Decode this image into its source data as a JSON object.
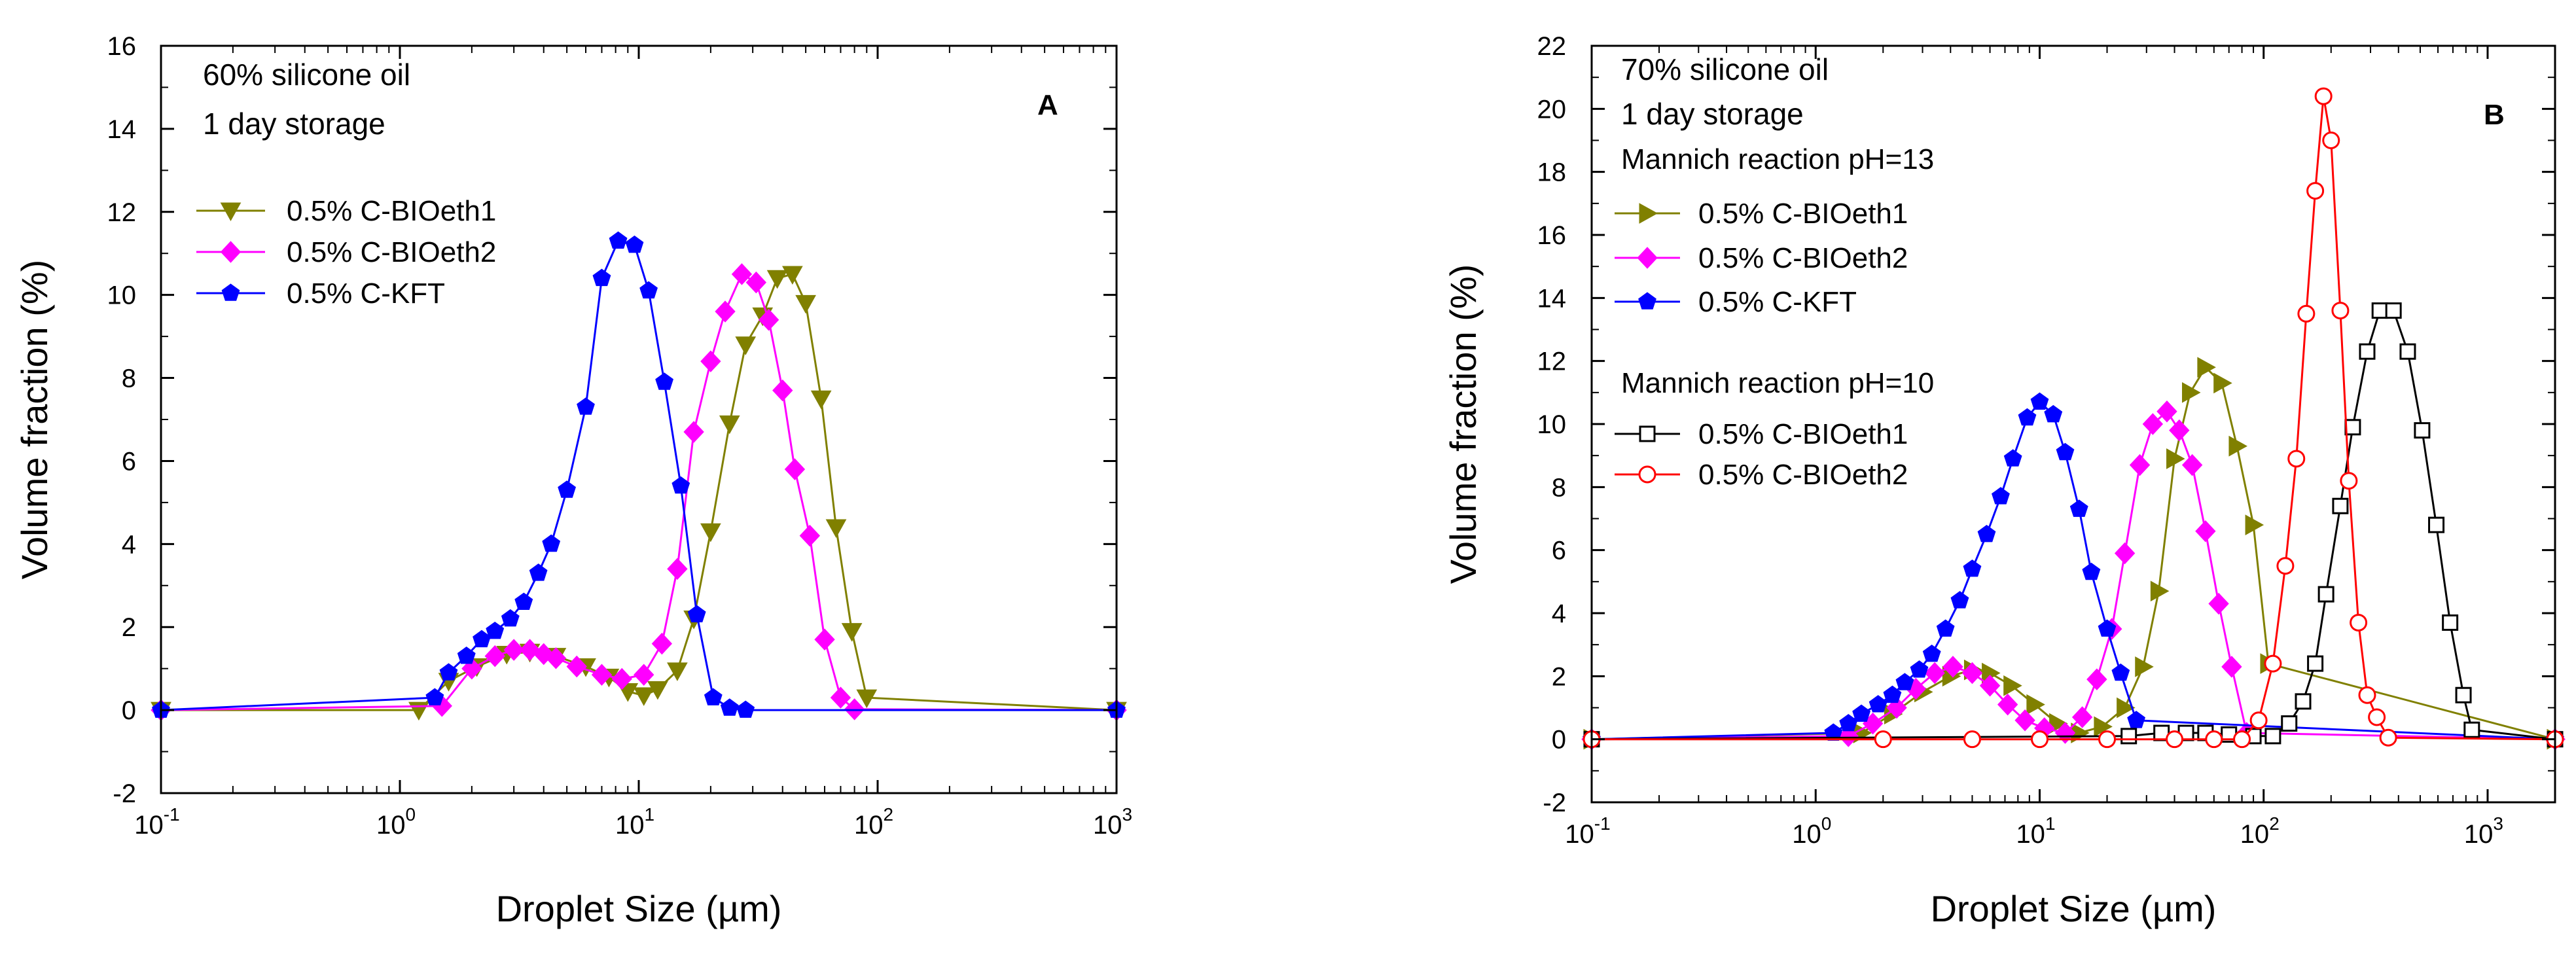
{
  "chart_data": [
    {
      "type": "line",
      "panel": "A",
      "xlabel": "Droplet Size (µm)",
      "ylabel": "Volume fraction (%)",
      "xscale": "log",
      "xlim": [
        0.1,
        1000
      ],
      "ylim": [
        -2,
        16
      ],
      "xticks": [
        0.1,
        1,
        10,
        100,
        1000
      ],
      "xtick_labels": [
        {
          "base": "10",
          "exp": "-1"
        },
        {
          "base": "10",
          "exp": "0"
        },
        {
          "base": "10",
          "exp": "1"
        },
        {
          "base": "10",
          "exp": "2"
        },
        {
          "base": "10",
          "exp": "3"
        }
      ],
      "yticks": [
        -2,
        0,
        2,
        4,
        6,
        8,
        10,
        12,
        14,
        16
      ],
      "annotations": [
        "60% silicone oil",
        "1 day storage"
      ],
      "legend": {
        "header": "",
        "entries": [
          "0.5% C-BIOeth1",
          "0.5% C-BIOeth2",
          "0.5% C-KFT"
        ]
      },
      "series": [
        {
          "name": "0.5% C-BIOeth1",
          "color": "#808000",
          "marker": "triangle-down",
          "filled": true,
          "x": [
            0.1,
            1.2,
            1.6,
            2.1,
            2.8,
            3.5,
            4.5,
            6,
            7.5,
            9,
            10.5,
            12,
            14.5,
            17,
            20,
            24,
            28,
            33,
            38,
            44,
            50,
            58,
            67,
            78,
            90,
            1000
          ],
          "y": [
            0,
            0,
            0.7,
            1.05,
            1.35,
            1.4,
            1.3,
            1.05,
            0.8,
            0.45,
            0.35,
            0.5,
            0.95,
            2.2,
            4.3,
            6.9,
            8.8,
            9.5,
            10.4,
            10.5,
            9.8,
            7.5,
            4.4,
            1.9,
            0.3,
            0
          ]
        },
        {
          "name": "0.5% C-BIOeth2",
          "color": "#ff00ff",
          "marker": "diamond",
          "filled": true,
          "x": [
            0.1,
            1.5,
            2.0,
            2.5,
            3.0,
            3.5,
            4.0,
            4.5,
            5.5,
            7.0,
            8.5,
            10.5,
            12.5,
            14.5,
            17,
            20,
            23,
            27,
            31,
            35,
            40,
            45,
            52,
            60,
            70,
            80,
            1000
          ],
          "y": [
            0,
            0.1,
            1.0,
            1.3,
            1.45,
            1.45,
            1.35,
            1.25,
            1.05,
            0.85,
            0.75,
            0.85,
            1.6,
            3.4,
            6.7,
            8.4,
            9.6,
            10.5,
            10.3,
            9.4,
            7.7,
            5.8,
            4.2,
            1.7,
            0.3,
            0.02,
            0
          ]
        },
        {
          "name": "0.5% C-KFT",
          "color": "#0000ff",
          "marker": "pentagon",
          "filled": true,
          "x": [
            0.1,
            1.4,
            1.6,
            1.9,
            2.2,
            2.5,
            2.9,
            3.3,
            3.8,
            4.3,
            5.0,
            6.0,
            7.0,
            8.2,
            9.6,
            11.0,
            12.8,
            15.0,
            17.5,
            20.5,
            24,
            28,
            1000
          ],
          "y": [
            0,
            0.3,
            0.9,
            1.3,
            1.7,
            1.9,
            2.2,
            2.6,
            3.3,
            4.0,
            5.3,
            7.3,
            10.4,
            11.3,
            11.2,
            10.1,
            7.9,
            5.4,
            2.3,
            0.3,
            0.05,
            0,
            0
          ]
        }
      ]
    },
    {
      "type": "line",
      "panel": "B",
      "xlabel": "Droplet Size (µm)",
      "ylabel": "Volume fraction (%)",
      "xscale": "log",
      "xlim": [
        0.1,
        2000
      ],
      "ylim": [
        -2,
        22
      ],
      "xticks": [
        0.1,
        1,
        10,
        100,
        1000
      ],
      "xtick_labels": [
        {
          "base": "10",
          "exp": "-1"
        },
        {
          "base": "10",
          "exp": "0"
        },
        {
          "base": "10",
          "exp": "1"
        },
        {
          "base": "10",
          "exp": "2"
        },
        {
          "base": "10",
          "exp": "3"
        }
      ],
      "yticks": [
        -2,
        0,
        2,
        4,
        6,
        8,
        10,
        12,
        14,
        16,
        18,
        20,
        22
      ],
      "annotations": [
        "70% silicone oil",
        "1 day storage"
      ],
      "legend_groups": [
        {
          "header": "Mannich reaction pH=13",
          "entries": [
            "0.5% C-BIOeth1",
            "0.5% C-BIOeth2",
            "0.5% C-KFT"
          ]
        },
        {
          "header": "Mannich reaction pH=10",
          "entries": [
            "0.5% C-BIOeth1",
            "0.5% C-BIOeth2"
          ]
        }
      ],
      "series": [
        {
          "name": "0.5% C-BIOeth1",
          "group": "Mannich reaction pH=13",
          "color": "#808000",
          "marker": "triangle-right",
          "filled": true,
          "x": [
            0.1,
            1.6,
            2.2,
            3.0,
            4.0,
            5.0,
            6.0,
            7.5,
            9.5,
            12,
            15,
            19,
            24,
            29,
            34,
            40,
            47,
            55,
            65,
            76,
            90,
            105,
            2000
          ],
          "y": [
            0,
            0.2,
            0.8,
            1.5,
            2.0,
            2.2,
            2.1,
            1.7,
            1.1,
            0.5,
            0.2,
            0.4,
            1.0,
            2.3,
            4.7,
            8.9,
            11.0,
            11.8,
            11.3,
            9.3,
            6.8,
            2.4,
            0
          ]
        },
        {
          "name": "0.5% C-BIOeth2",
          "group": "Mannich reaction pH=13",
          "color": "#ff00ff",
          "marker": "diamond",
          "filled": true,
          "x": [
            0.1,
            1.4,
            1.8,
            2.3,
            2.8,
            3.4,
            4.1,
            5.0,
            6.0,
            7.2,
            8.6,
            10.5,
            13,
            15.5,
            18,
            21,
            24,
            28,
            32,
            37,
            42,
            48,
            55,
            63,
            72,
            84,
            2000
          ],
          "y": [
            0,
            0.1,
            0.5,
            1.0,
            1.6,
            2.1,
            2.3,
            2.1,
            1.7,
            1.1,
            0.6,
            0.35,
            0.2,
            0.7,
            1.9,
            3.5,
            5.9,
            8.7,
            10.0,
            10.4,
            9.8,
            8.7,
            6.6,
            4.3,
            2.3,
            0.2,
            0
          ]
        },
        {
          "name": "0.5% C-KFT",
          "group": "Mannich reaction pH=13",
          "color": "#0000ff",
          "marker": "pentagon",
          "filled": true,
          "x": [
            0.1,
            1.2,
            1.4,
            1.6,
            1.9,
            2.2,
            2.5,
            2.9,
            3.3,
            3.8,
            4.4,
            5.0,
            5.8,
            6.7,
            7.6,
            8.8,
            10.0,
            11.5,
            13,
            15,
            17,
            20,
            23,
            27,
            2000
          ],
          "y": [
            0,
            0.2,
            0.5,
            0.8,
            1.1,
            1.4,
            1.8,
            2.2,
            2.7,
            3.5,
            4.4,
            5.4,
            6.5,
            7.7,
            8.9,
            10.2,
            10.7,
            10.3,
            9.1,
            7.3,
            5.3,
            3.5,
            2.1,
            0.6,
            0
          ]
        },
        {
          "name": "0.5% C-BIOeth1",
          "group": "Mannich reaction pH=10",
          "color": "#000000",
          "marker": "square",
          "filled": false,
          "x": [
            0.1,
            25,
            35,
            45,
            55,
            70,
            90,
            110,
            130,
            150,
            170,
            190,
            220,
            250,
            290,
            330,
            380,
            440,
            510,
            590,
            680,
            780,
            850,
            2000
          ],
          "y": [
            0,
            0.1,
            0.2,
            0.2,
            0.2,
            0.15,
            0.1,
            0.1,
            0.5,
            1.2,
            2.4,
            4.6,
            7.4,
            9.9,
            12.3,
            13.6,
            13.6,
            12.3,
            9.8,
            6.8,
            3.7,
            1.4,
            0.3,
            0
          ]
        },
        {
          "name": "0.5% C-BIOeth2",
          "group": "Mannich reaction pH=10",
          "color": "#ff0000",
          "marker": "circle",
          "filled": false,
          "x": [
            0.1,
            2.0,
            5.0,
            10,
            20,
            40,
            60,
            80,
            95,
            110,
            125,
            140,
            155,
            170,
            185,
            200,
            220,
            240,
            265,
            290,
            320,
            360,
            2000
          ],
          "y": [
            0,
            0,
            0,
            0,
            0,
            0,
            0,
            0,
            0.6,
            2.4,
            5.5,
            8.9,
            13.5,
            17.4,
            20.4,
            19.0,
            13.6,
            8.2,
            3.7,
            1.4,
            0.7,
            0.05,
            0
          ]
        }
      ]
    }
  ]
}
